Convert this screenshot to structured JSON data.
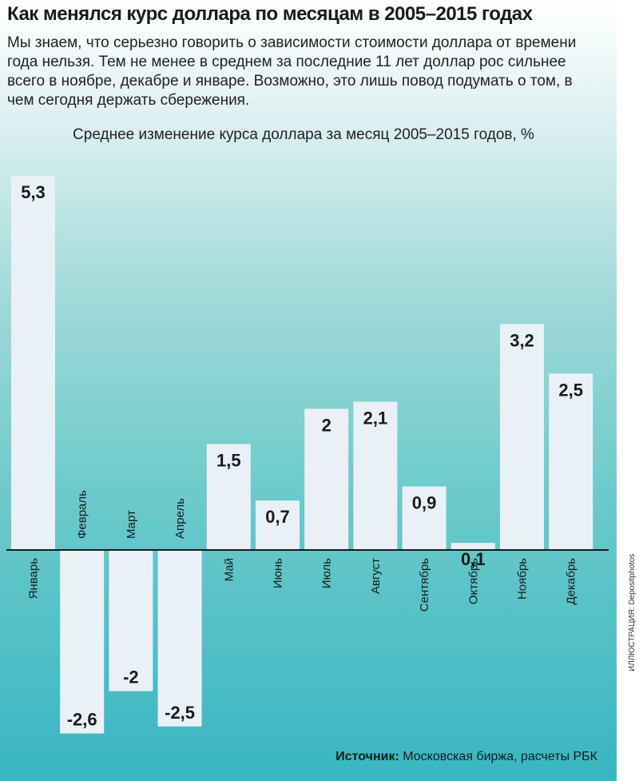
{
  "header": {
    "title": "Как менялся курс доллара по месяцам в 2005–2015 годах",
    "subtitle": "Мы знаем, что серьезно говорить о зависимости стоимости доллара от времени года нельзя. Тем не менее в среднем за последние 11 лет доллар рос сильнее всего в ноябре, декабре и январе. Возможно, это лишь повод подумать о том, в чем сегодня держать сбережения."
  },
  "chart_data": {
    "type": "bar",
    "title": "Среднее изменение курса доллара за месяц 2005–2015 годов, %",
    "categories": [
      "Январь",
      "Февраль",
      "Март",
      "Апрель",
      "Май",
      "Июнь",
      "Июль",
      "Август",
      "Сентябрь",
      "Октябрь",
      "Ноябрь",
      "Декабрь"
    ],
    "values": [
      5.3,
      -2.6,
      -2.0,
      -2.5,
      1.5,
      0.7,
      2.0,
      2.1,
      0.9,
      0.1,
      3.2,
      2.5
    ],
    "value_labels": [
      "5,3",
      "-2,6",
      "-2",
      "-2,5",
      "1,5",
      "0,7",
      "2",
      "2,1",
      "0,9",
      "0,1",
      "3,2",
      "2,5"
    ],
    "xlabel": "",
    "ylabel": "",
    "ylim": [
      -2.6,
      5.3
    ],
    "grid": false,
    "bar_color": "#e9f1f6"
  },
  "footer": {
    "source_label": "Источник:",
    "source_text": " Московская биржа, расчеты РБК",
    "credit": "ИЛЛЮСТРАЦИЯ: Depositphotos"
  }
}
